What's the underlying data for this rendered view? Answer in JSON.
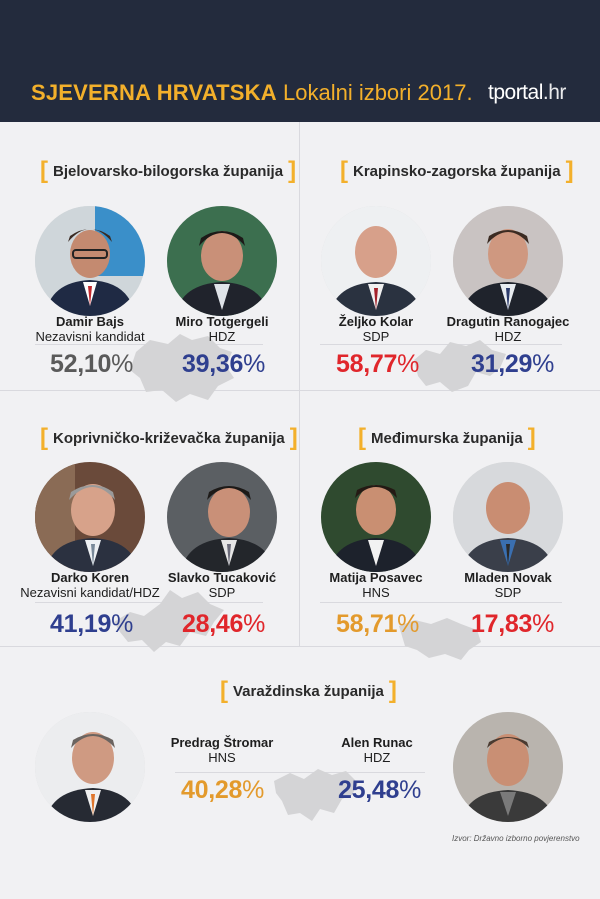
{
  "header": {
    "title_bold": "SJEVERNA HRVATSKA",
    "title_rest": "Lokalni izbori 2017.",
    "logo_main": "tportal",
    "logo_tld": ".hr"
  },
  "colors": {
    "header_bg": "#232b3d",
    "accent": "#f3b02b",
    "grey": "#5a5a5a",
    "navy": "#2f3f8f",
    "red": "#e0262b",
    "orange": "#e39a2c",
    "map": "#d4d4d6"
  },
  "counties": [
    {
      "name": "Bjelovarsko-bilogorska županija",
      "candidates": [
        {
          "name": "Damir Bajs",
          "party": "Nezavisni kandidat",
          "percent": "52,10",
          "color": "grey"
        },
        {
          "name": "Miro Totgergeli",
          "party": "HDZ",
          "percent": "39,36",
          "color": "navy"
        }
      ]
    },
    {
      "name": "Krapinsko-zagorska županija",
      "candidates": [
        {
          "name": "Željko Kolar",
          "party": "SDP",
          "percent": "58,77",
          "color": "red"
        },
        {
          "name": "Dragutin Ranogajec",
          "party": "HDZ",
          "percent": "31,29",
          "color": "navy"
        }
      ]
    },
    {
      "name": "Koprivničko-križevačka županija",
      "candidates": [
        {
          "name": "Darko Koren",
          "party": "Nezavisni kandidat/HDZ",
          "percent": "41,19",
          "color": "navy"
        },
        {
          "name": "Slavko Tucaković",
          "party": "SDP",
          "percent": "28,46",
          "color": "red"
        }
      ]
    },
    {
      "name": "Međimurska županija",
      "candidates": [
        {
          "name": "Matija Posavec",
          "party": "HNS",
          "percent": "58,71",
          "color": "orange"
        },
        {
          "name": "Mladen Novak",
          "party": "SDP",
          "percent": "17,83",
          "color": "red"
        }
      ]
    },
    {
      "name": "Varaždinska županija",
      "candidates": [
        {
          "name": "Predrag Štromar",
          "party": "HNS",
          "percent": "40,28",
          "color": "orange"
        },
        {
          "name": "Alen Runac",
          "party": "HDZ",
          "percent": "25,48",
          "color": "navy"
        }
      ]
    }
  ],
  "percent_sign": "%",
  "bracket_open": "[",
  "bracket_close": "]",
  "source": "Izvor: Državno izborno povjerenstvo"
}
